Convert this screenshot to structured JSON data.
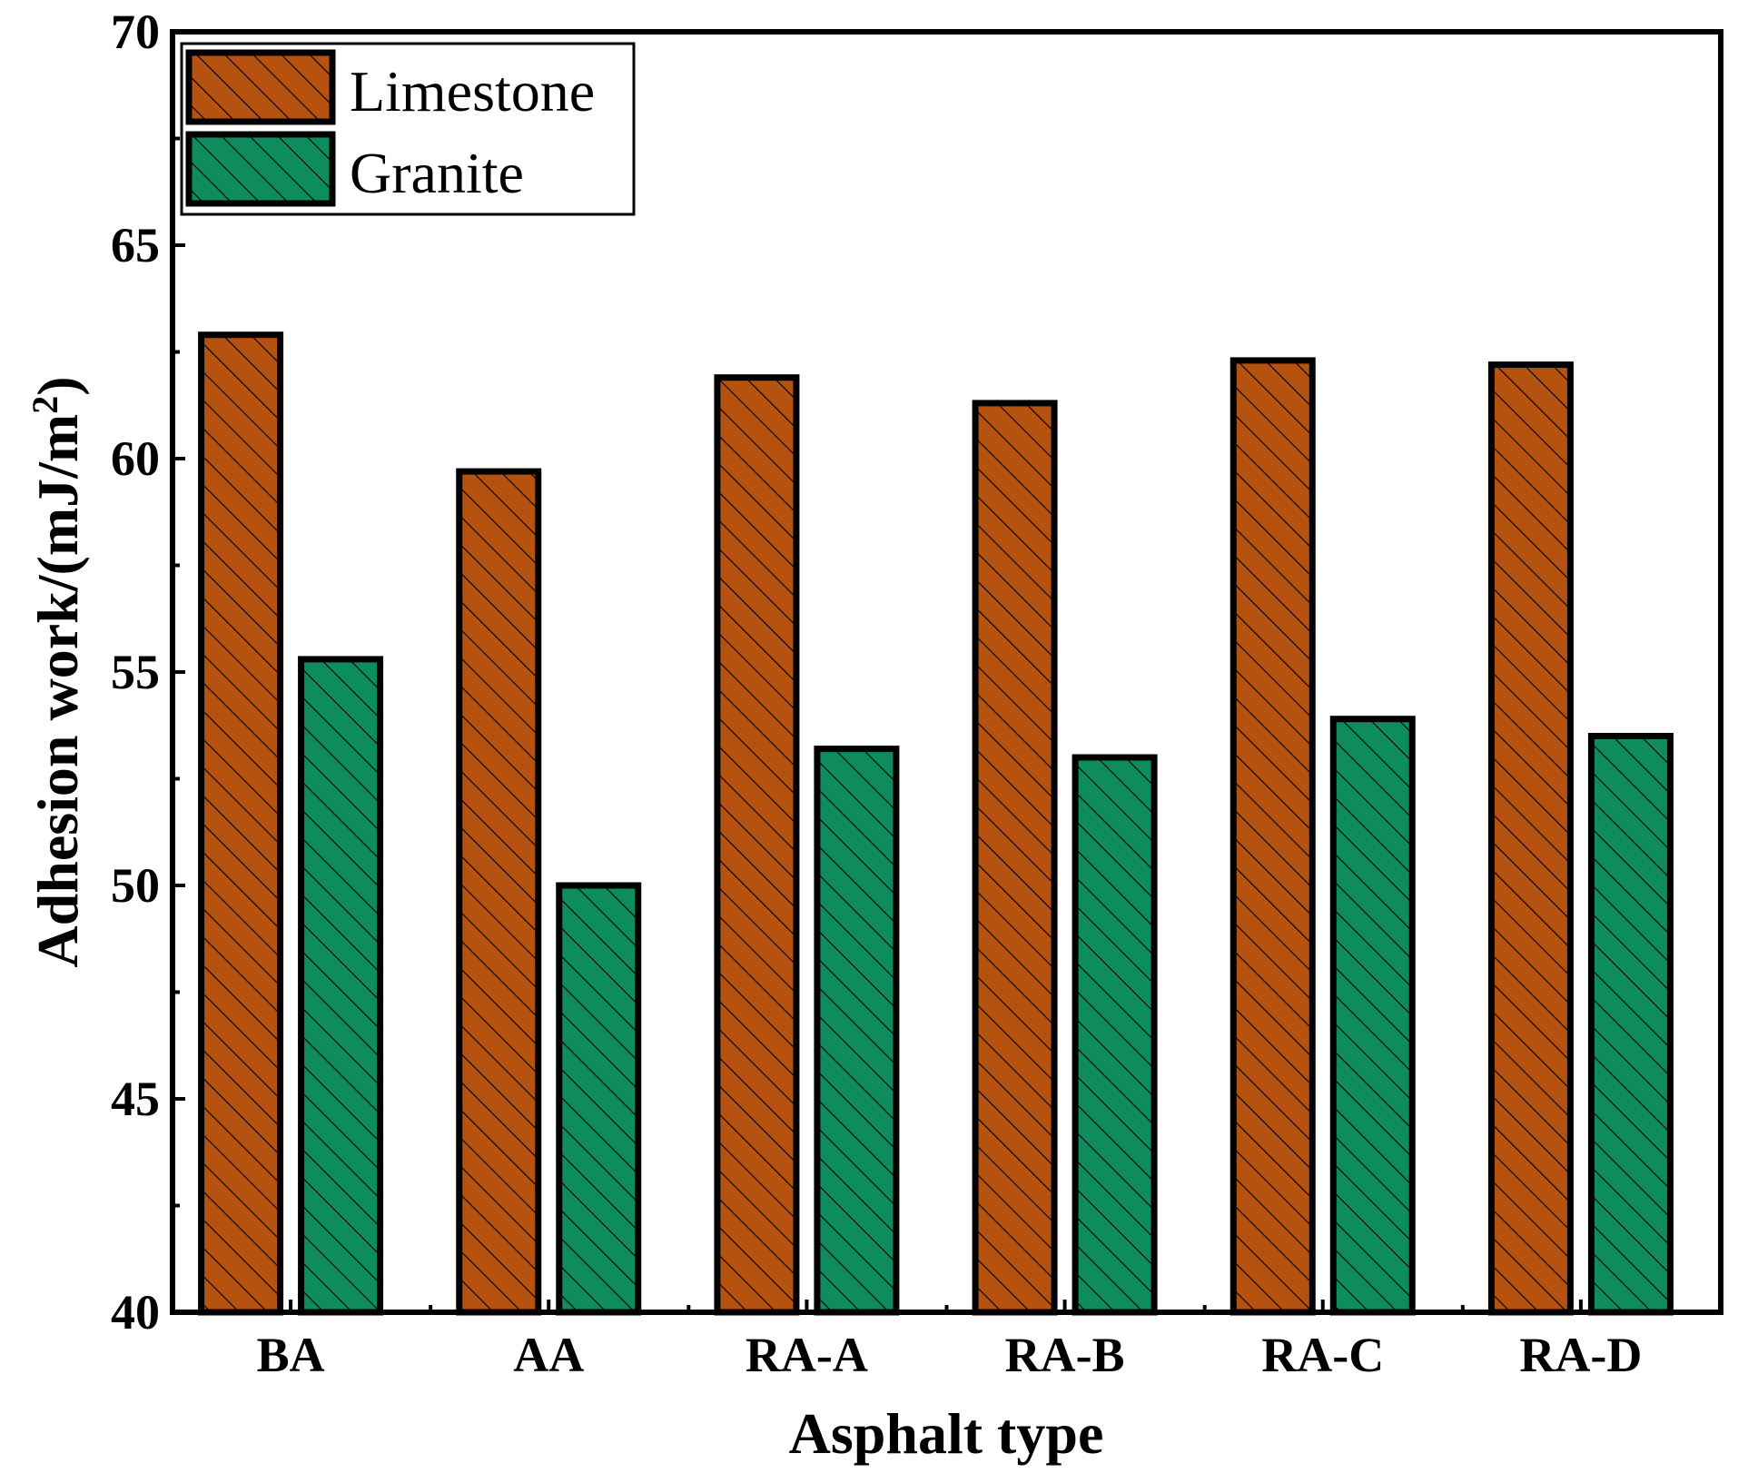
{
  "chart_data": {
    "type": "bar",
    "title": "",
    "xlabel": "Asphalt type",
    "ylabel": "Adhesion work/(mJ/m",
    "ylabel_superscript": "2",
    "ylabel_suffix": ")",
    "ylim": [
      40,
      70
    ],
    "yticks": [
      40,
      45,
      50,
      55,
      60,
      65,
      70
    ],
    "categories": [
      "BA",
      "AA",
      "RA-A",
      "RA-B",
      "RA-C",
      "RA-D"
    ],
    "series": [
      {
        "name": "Limestone",
        "color": "#b5520f",
        "values": [
          62.9,
          59.7,
          61.9,
          61.3,
          62.3,
          62.2
        ]
      },
      {
        "name": "Granite",
        "color": "#0f8c5e",
        "values": [
          55.3,
          50.0,
          53.2,
          53.0,
          53.9,
          53.5
        ]
      }
    ],
    "legend": {
      "position": "top-left"
    },
    "grid": false,
    "pattern": "diagonal-hatch"
  }
}
